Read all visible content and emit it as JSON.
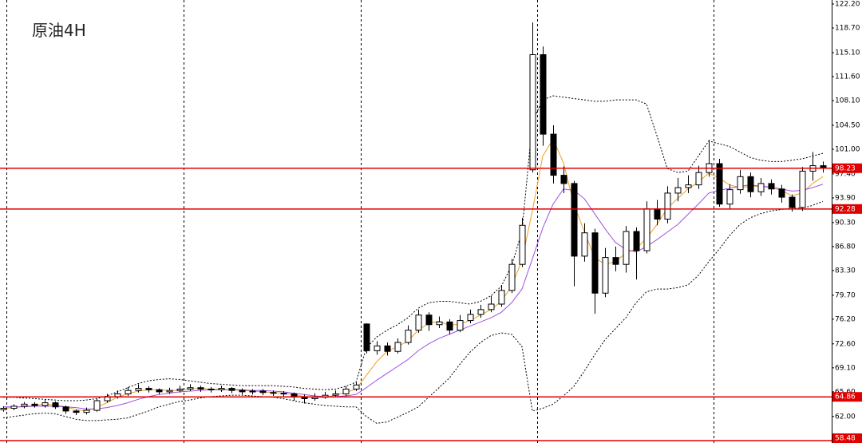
{
  "chart_data": {
    "type": "candlestick",
    "title": "原油4H",
    "open": [
      63.0,
      63.2,
      63.5,
      63.8,
      63.6,
      64.0,
      63.4,
      62.8,
      62.6,
      62.9,
      64.3,
      64.9,
      65.3,
      65.8,
      66.1,
      65.9,
      65.6,
      65.8,
      66.0,
      66.2,
      66.0,
      65.9,
      66.1,
      65.8,
      65.6,
      65.7,
      65.5,
      65.4,
      65.3,
      64.9,
      64.6,
      64.8,
      65.1,
      65.3,
      66.0,
      75.5,
      71.6,
      72.3,
      71.5,
      72.8,
      74.6,
      76.8,
      75.4,
      75.8,
      74.6,
      76.0,
      76.9,
      77.6,
      78.4,
      80.4,
      84.2,
      98.0,
      114.8,
      103.2,
      97.2,
      96.0,
      85.4,
      88.8,
      80.0,
      85.2,
      84.2,
      89.0,
      86.2,
      92.3,
      90.8,
      94.6,
      95.4,
      95.8,
      97.6,
      98.9,
      93.0,
      95.1,
      97.0,
      94.8,
      96.0,
      95.2,
      94.0,
      92.5,
      97.8,
      98.6
    ],
    "high": [
      63.5,
      63.8,
      64.1,
      64.1,
      64.4,
      64.2,
      63.6,
      63.0,
      63.3,
      64.6,
      65.3,
      65.8,
      66.3,
      66.7,
      66.4,
      66.1,
      66.2,
      66.5,
      66.7,
      66.5,
      66.3,
      66.5,
      66.3,
      66.1,
      66.0,
      66.0,
      65.8,
      65.7,
      65.5,
      65.2,
      65.4,
      65.6,
      65.8,
      66.4,
      67.0,
      75.6,
      73.0,
      72.8,
      73.4,
      75.3,
      77.6,
      77.2,
      76.6,
      76.2,
      76.8,
      77.6,
      78.3,
      79.6,
      81.2,
      85.0,
      91.0,
      119.5,
      116.0,
      104.5,
      98.5,
      96.4,
      90.2,
      89.4,
      86.6,
      86.8,
      89.8,
      89.6,
      93.4,
      93.6,
      95.6,
      96.8,
      97.2,
      98.6,
      102.4,
      99.6,
      95.9,
      98.0,
      97.6,
      96.8,
      96.6,
      95.8,
      94.4,
      98.4,
      100.6,
      99.2
    ],
    "low": [
      62.7,
      62.9,
      63.2,
      63.3,
      63.3,
      63.1,
      62.4,
      62.2,
      62.3,
      62.7,
      64.0,
      64.6,
      65.0,
      65.5,
      65.5,
      65.2,
      65.3,
      65.5,
      65.7,
      65.6,
      65.5,
      65.6,
      65.4,
      65.2,
      65.2,
      65.1,
      65.0,
      64.9,
      64.3,
      63.9,
      64.3,
      64.6,
      64.9,
      65.0,
      65.7,
      71.2,
      71.0,
      70.9,
      71.2,
      72.5,
      74.2,
      74.5,
      74.9,
      74.0,
      74.3,
      75.6,
      76.4,
      77.2,
      78.0,
      80.0,
      83.8,
      97.6,
      101.5,
      96.0,
      94.6,
      81.0,
      84.6,
      77.0,
      79.4,
      83.2,
      83.0,
      82.0,
      85.8,
      89.9,
      90.2,
      93.4,
      94.6,
      95.2,
      97.0,
      92.6,
      92.2,
      94.5,
      94.0,
      94.2,
      94.4,
      93.2,
      91.9,
      92.0,
      96.4,
      97.6
    ],
    "close": [
      63.2,
      63.5,
      63.8,
      63.6,
      64.0,
      63.4,
      62.8,
      62.6,
      62.9,
      64.3,
      64.9,
      65.3,
      65.8,
      66.1,
      65.9,
      65.6,
      65.8,
      66.0,
      66.2,
      66.0,
      65.9,
      66.1,
      65.8,
      65.6,
      65.7,
      65.5,
      65.4,
      65.3,
      64.9,
      64.6,
      64.8,
      65.1,
      65.3,
      66.0,
      66.6,
      71.6,
      72.3,
      71.5,
      72.8,
      74.6,
      76.8,
      75.4,
      75.8,
      74.6,
      76.0,
      76.9,
      77.6,
      78.4,
      80.4,
      84.2,
      89.9,
      114.8,
      103.2,
      97.2,
      96.0,
      85.4,
      88.8,
      80.0,
      85.2,
      84.2,
      89.0,
      86.2,
      92.3,
      90.8,
      94.6,
      95.4,
      95.8,
      97.6,
      98.9,
      93.0,
      95.1,
      97.0,
      94.8,
      96.0,
      95.2,
      94.0,
      92.5,
      97.8,
      98.6,
      98.2
    ],
    "series": [
      {
        "color": "#f0a020",
        "dashed": false,
        "values": [
          63.2,
          63.3,
          63.5,
          63.6,
          63.8,
          63.7,
          63.4,
          63.0,
          62.8,
          63.3,
          64.0,
          64.8,
          65.3,
          65.7,
          65.9,
          65.9,
          65.8,
          65.8,
          66.0,
          66.1,
          66.0,
          66.0,
          65.9,
          65.8,
          65.7,
          65.6,
          65.5,
          65.4,
          65.2,
          64.9,
          64.8,
          64.8,
          65.1,
          65.5,
          66.0,
          68.0,
          70.0,
          71.5,
          72.2,
          73.0,
          74.6,
          75.6,
          75.9,
          75.3,
          75.5,
          76.0,
          76.8,
          77.6,
          78.8,
          81.0,
          84.8,
          92.0,
          100.0,
          102.5,
          99.0,
          93.0,
          89.0,
          85.2,
          84.2,
          84.6,
          85.8,
          86.5,
          88.0,
          90.0,
          92.4,
          93.8,
          95.2,
          96.2,
          97.5,
          96.8,
          95.8,
          95.4,
          95.6,
          95.6,
          95.4,
          95.0,
          94.2,
          94.6,
          96.0,
          97.0
        ]
      },
      {
        "color": "#a050e0",
        "dashed": false,
        "values": [
          63.4,
          63.4,
          63.4,
          63.5,
          63.5,
          63.5,
          63.4,
          63.3,
          63.1,
          63.1,
          63.3,
          63.6,
          64.0,
          64.5,
          64.9,
          65.2,
          65.4,
          65.6,
          65.7,
          65.8,
          65.9,
          65.9,
          65.9,
          65.9,
          65.8,
          65.8,
          65.7,
          65.6,
          65.4,
          65.2,
          65.0,
          64.9,
          64.9,
          65.0,
          65.2,
          66.2,
          67.3,
          68.3,
          69.3,
          70.3,
          71.6,
          72.6,
          73.4,
          74.0,
          74.6,
          75.2,
          75.8,
          76.4,
          77.2,
          78.6,
          80.6,
          85.0,
          89.5,
          93.0,
          95.2,
          95.0,
          93.8,
          91.6,
          89.4,
          87.4,
          86.4,
          86.0,
          86.8,
          87.8,
          88.9,
          90.0,
          91.5,
          93.0,
          94.6,
          95.0,
          95.3,
          95.6,
          95.8,
          95.6,
          95.5,
          95.2,
          94.9,
          95.0,
          95.4,
          95.9
        ]
      },
      {
        "color": "#000000",
        "dashed": true,
        "values": [
          64.8,
          64.8,
          64.7,
          64.6,
          64.5,
          64.4,
          64.3,
          64.3,
          64.4,
          64.6,
          65.0,
          65.6,
          66.2,
          66.8,
          67.2,
          67.4,
          67.5,
          67.4,
          67.2,
          67.0,
          66.8,
          66.7,
          66.6,
          66.5,
          66.5,
          66.5,
          66.5,
          66.4,
          66.3,
          66.1,
          66.0,
          65.9,
          66.0,
          66.4,
          67.0,
          72.0,
          73.6,
          74.6,
          75.4,
          76.4,
          77.8,
          78.6,
          78.8,
          78.8,
          78.6,
          78.4,
          78.8,
          79.6,
          81.0,
          84.0,
          89.0,
          105.0,
          108.2,
          108.8,
          108.6,
          108.4,
          108.2,
          108.0,
          108.0,
          108.2,
          108.2,
          108.2,
          107.6,
          103.0,
          98.2,
          97.6,
          97.8,
          100.0,
          102.2,
          101.8,
          101.4,
          100.6,
          99.8,
          99.4,
          99.2,
          99.2,
          99.4,
          99.6,
          100.0,
          100.4
        ]
      },
      {
        "color": "#000000",
        "dashed": true,
        "values": [
          61.8,
          62.0,
          62.2,
          62.4,
          62.5,
          62.4,
          62.0,
          61.6,
          61.4,
          61.4,
          61.5,
          61.6,
          61.8,
          62.3,
          62.8,
          63.4,
          63.8,
          64.2,
          64.4,
          64.7,
          64.9,
          65.0,
          65.1,
          65.1,
          65.0,
          64.9,
          64.8,
          64.6,
          64.3,
          64.0,
          63.8,
          63.6,
          63.5,
          63.4,
          63.4,
          62.0,
          61.0,
          61.2,
          61.9,
          62.6,
          63.4,
          64.8,
          66.2,
          67.6,
          69.6,
          71.4,
          72.8,
          73.8,
          74.2,
          74.0,
          72.2,
          62.8,
          63.2,
          63.8,
          65.0,
          66.4,
          68.6,
          71.0,
          73.2,
          74.8,
          76.4,
          78.6,
          80.2,
          80.6,
          80.6,
          80.8,
          81.2,
          82.6,
          84.6,
          86.4,
          88.4,
          90.0,
          91.0,
          91.6,
          92.0,
          92.2,
          92.4,
          92.4,
          92.8,
          93.4
        ]
      }
    ],
    "hlines": {
      "color": "#e00000",
      "values": [
        98.23,
        92.28,
        64.86,
        58.48
      ]
    },
    "ylim": [
      58.13,
      122.78
    ],
    "yticks": [
      {
        "value": 122.2,
        "label": "122.20"
      },
      {
        "value": 118.7,
        "label": "118.70"
      },
      {
        "value": 115.1,
        "label": "115.10"
      },
      {
        "value": 111.6,
        "label": "111.60"
      },
      {
        "value": 108.1,
        "label": "108.10"
      },
      {
        "value": 104.5,
        "label": "104.50"
      },
      {
        "value": 101.0,
        "label": "101.00"
      },
      {
        "value": 97.4,
        "label": "97.40"
      },
      {
        "value": 93.9,
        "label": "93.90"
      },
      {
        "value": 90.3,
        "label": "90.30"
      },
      {
        "value": 86.8,
        "label": "86.80"
      },
      {
        "value": 83.3,
        "label": "83.30"
      },
      {
        "value": 79.7,
        "label": "79.70"
      },
      {
        "value": 76.2,
        "label": "76.20"
      },
      {
        "value": 72.6,
        "label": "72.60"
      },
      {
        "value": 69.1,
        "label": "69.10"
      },
      {
        "value": 65.6,
        "label": "65.60"
      },
      {
        "value": 62.0,
        "label": "62.00"
      }
    ]
  }
}
